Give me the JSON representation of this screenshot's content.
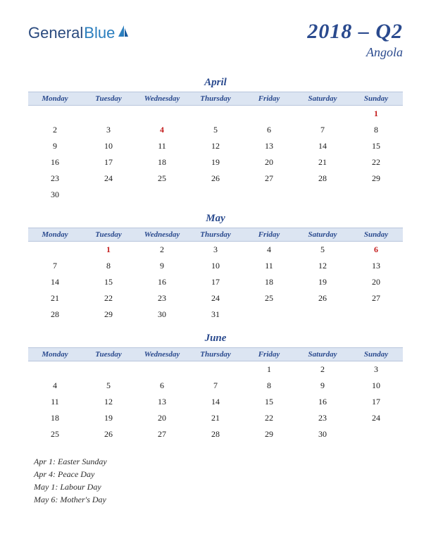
{
  "logo": {
    "part1": "General",
    "part2": "Blue"
  },
  "title": {
    "main": "2018 – Q2",
    "sub": "Angola"
  },
  "colors": {
    "title": "#2a4a8e",
    "header_bg": "#dce5f2",
    "header_border": "#b8c5dc",
    "day_text": "#1a1a1a",
    "holiday_text": "#c41e1e",
    "background": "#ffffff"
  },
  "weekdays": [
    "Monday",
    "Tuesday",
    "Wednesday",
    "Thursday",
    "Friday",
    "Saturday",
    "Sunday"
  ],
  "months": [
    {
      "name": "April",
      "weeks": [
        [
          "",
          "",
          "",
          "",
          "",
          "",
          {
            "d": "1",
            "h": true
          }
        ],
        [
          "2",
          "3",
          {
            "d": "4",
            "h": true
          },
          "5",
          "6",
          "7",
          "8"
        ],
        [
          "9",
          "10",
          "11",
          "12",
          "13",
          "14",
          "15"
        ],
        [
          "16",
          "17",
          "18",
          "19",
          "20",
          "21",
          "22"
        ],
        [
          "23",
          "24",
          "25",
          "26",
          "27",
          "28",
          "29"
        ],
        [
          "30",
          "",
          "",
          "",
          "",
          "",
          ""
        ]
      ]
    },
    {
      "name": "May",
      "weeks": [
        [
          "",
          {
            "d": "1",
            "h": true
          },
          "2",
          "3",
          "4",
          "5",
          {
            "d": "6",
            "h": true
          }
        ],
        [
          "7",
          "8",
          "9",
          "10",
          "11",
          "12",
          "13"
        ],
        [
          "14",
          "15",
          "16",
          "17",
          "18",
          "19",
          "20"
        ],
        [
          "21",
          "22",
          "23",
          "24",
          "25",
          "26",
          "27"
        ],
        [
          "28",
          "29",
          "30",
          "31",
          "",
          "",
          ""
        ]
      ]
    },
    {
      "name": "June",
      "weeks": [
        [
          "",
          "",
          "",
          "",
          "1",
          "2",
          "3"
        ],
        [
          "4",
          "5",
          "6",
          "7",
          "8",
          "9",
          "10"
        ],
        [
          "11",
          "12",
          "13",
          "14",
          "15",
          "16",
          "17"
        ],
        [
          "18",
          "19",
          "20",
          "21",
          "22",
          "23",
          "24"
        ],
        [
          "25",
          "26",
          "27",
          "28",
          "29",
          "30",
          ""
        ]
      ]
    }
  ],
  "holidays": [
    "Apr 1: Easter Sunday",
    "Apr 4: Peace Day",
    "May 1: Labour Day",
    "May 6: Mother's Day"
  ]
}
